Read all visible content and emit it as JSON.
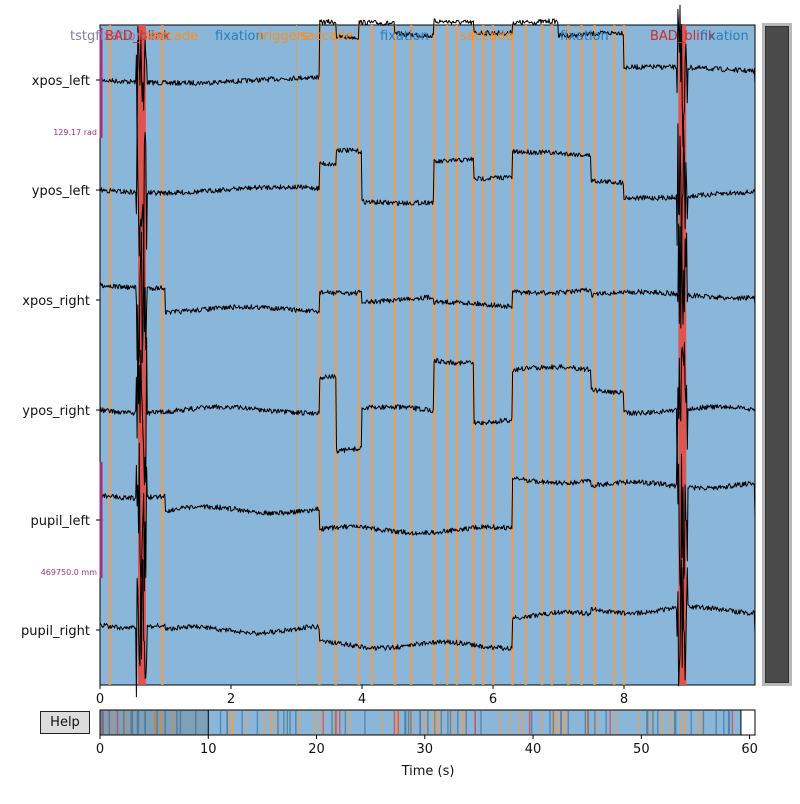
{
  "window": {
    "help_label": "Help"
  },
  "colors": {
    "plot_bg": "#8ab7d9",
    "trace": "#000000",
    "bad": "#e8493f",
    "saccade": "#f39c4a",
    "fixation_text": "#2b7bba",
    "saccade_text": "#ff8c1a",
    "bad_text": "#d62728",
    "scalebar": "#a0307a"
  },
  "main": {
    "channels": [
      "xpos_left",
      "ypos_left",
      "xpos_right",
      "ypos_right",
      "pupil_left",
      "pupil_right"
    ],
    "scalebars": [
      "129.17 rad",
      "469750.0 mm"
    ],
    "x_ticks": [
      "0",
      "2",
      "4",
      "6",
      "8"
    ],
    "x_range": [
      0,
      10
    ],
    "annotation_labels": [
      "tstgfixationtion",
      "BAD_blink",
      "saccade",
      "fixation",
      "triggers",
      "saccade",
      "fixation",
      "saccade",
      "fixation",
      "BAD_blink",
      "fixation"
    ],
    "saccade_times": [
      0.15,
      0.95,
      3.35,
      3.6,
      3.95,
      4.15,
      4.5,
      4.75,
      5.1,
      5.3,
      5.45,
      5.7,
      5.85,
      6.0,
      6.3,
      6.5,
      6.75,
      6.9,
      7.15,
      7.35,
      7.55,
      7.85,
      8.0
    ],
    "bad_spans": [
      [
        0.58,
        0.7
      ],
      [
        8.83,
        8.95
      ]
    ]
  },
  "overview": {
    "x_ticks": [
      "0",
      "10",
      "20",
      "30",
      "40",
      "50",
      "60"
    ],
    "x_label": "Time (s)",
    "x_range": [
      0,
      60.5
    ],
    "view_window": [
      0,
      10
    ]
  }
}
